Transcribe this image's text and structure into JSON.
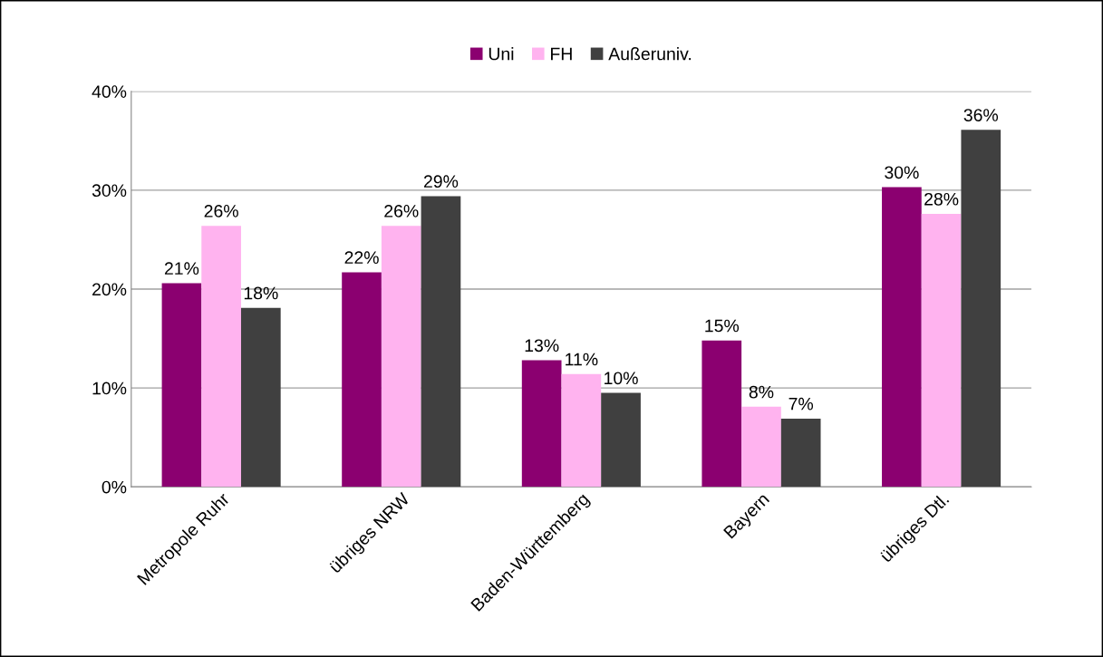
{
  "chart_data": {
    "type": "bar",
    "categories": [
      "Metropole Ruhr",
      "übriges NRW",
      "Baden-Württemberg",
      "Bayern",
      "übriges Dtl."
    ],
    "series": [
      {
        "name": "Uni",
        "color": "#8b0070",
        "values": [
          20.6,
          21.7,
          12.8,
          14.8,
          30.3
        ],
        "value_labels": [
          "21%",
          "22%",
          "13%",
          "15%",
          "30%"
        ]
      },
      {
        "name": "FH",
        "color": "#ffb3ef",
        "values": [
          26.4,
          26.4,
          11.4,
          8.1,
          27.6
        ],
        "value_labels": [
          "26%",
          "26%",
          "11%",
          "8%",
          "28%"
        ]
      },
      {
        "name": "Außeruniv.",
        "color": "#404040",
        "values": [
          18.1,
          29.4,
          9.5,
          6.9,
          36.1
        ],
        "value_labels": [
          "18%",
          "29%",
          "10%",
          "7%",
          "36%"
        ]
      }
    ],
    "ylim": [
      0,
      40
    ],
    "yticks": [
      {
        "value": 0,
        "label": "0%"
      },
      {
        "value": 10,
        "label": "10%"
      },
      {
        "value": 20,
        "label": "20%"
      },
      {
        "value": 30,
        "label": "30%"
      },
      {
        "value": 40,
        "label": "40%"
      }
    ],
    "grid": "y",
    "legend": "top"
  }
}
